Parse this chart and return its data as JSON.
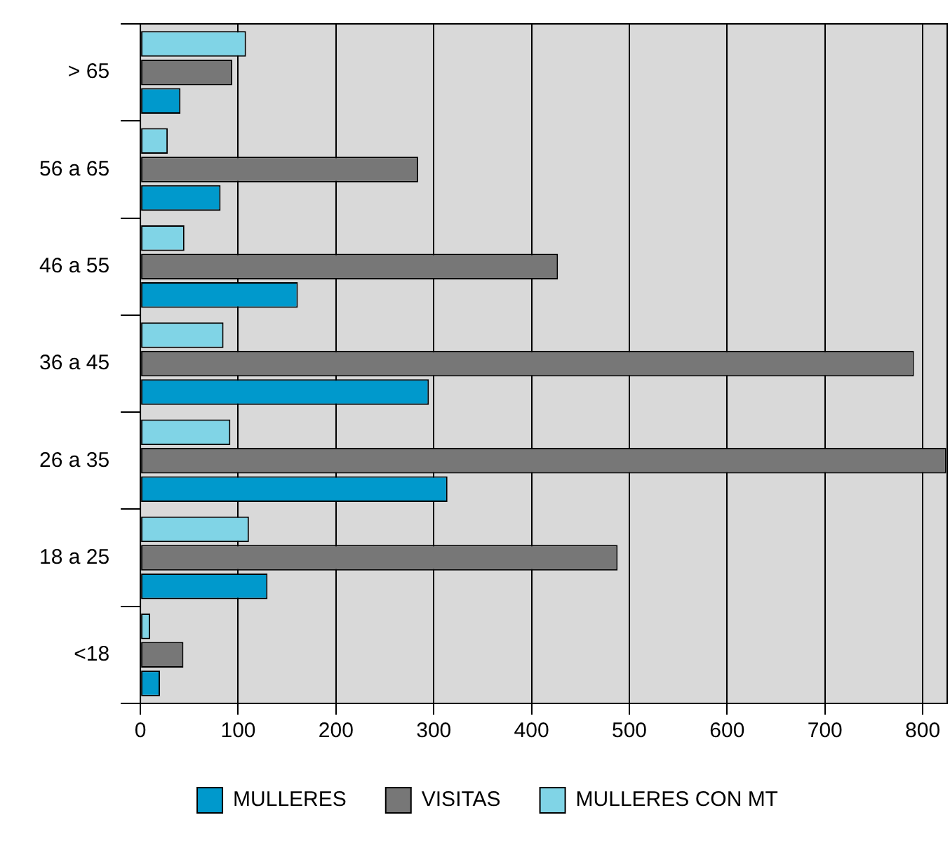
{
  "chart_data": {
    "type": "bar",
    "orientation": "horizontal",
    "categories": [
      "> 65",
      "56 a 65",
      "46 a 55",
      "36 a 45",
      "26 a 35",
      "18 a 25",
      "<18"
    ],
    "series": [
      {
        "name": "MULLERES",
        "color": "#0099cc",
        "values": [
          41,
          82,
          161,
          295,
          314,
          130,
          20
        ]
      },
      {
        "name": "VISITAS",
        "color": "#777777",
        "values": [
          94,
          284,
          427,
          791,
          824,
          488,
          44
        ]
      },
      {
        "name": "MULLERES CON MT",
        "color": "#80d4e6",
        "values": [
          108,
          28,
          45,
          85,
          92,
          111,
          10
        ]
      }
    ],
    "xlim": [
      0,
      825
    ],
    "xticks": [
      0,
      100,
      200,
      300,
      400,
      500,
      600,
      700,
      800
    ],
    "grid": "x",
    "legend": "bottom"
  }
}
